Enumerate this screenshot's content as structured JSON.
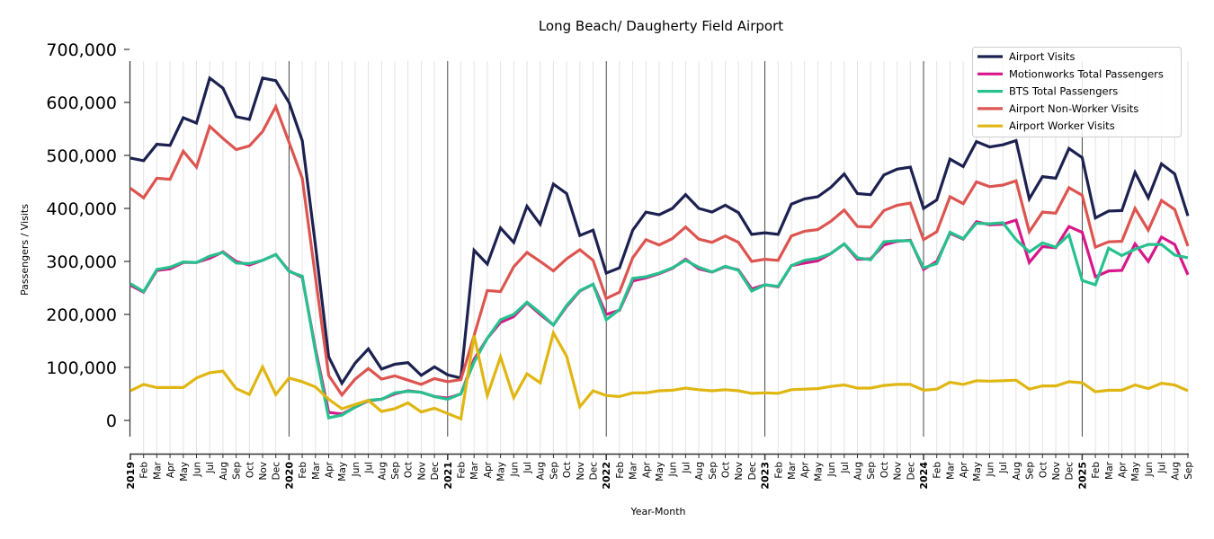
{
  "chart_data": {
    "type": "line",
    "title": "Long Beach/ Daugherty Field Airport",
    "xlabel": "Year-Month",
    "ylabel": "Passengers / Visits",
    "ylim": [
      -30000,
      700000
    ],
    "yticks": [
      0,
      100000,
      200000,
      300000,
      400000,
      500000,
      600000,
      700000
    ],
    "ytick_labels": [
      "0",
      "100,000",
      "200,000",
      "300,000",
      "400,000",
      "500,000",
      "600,000",
      "700,000"
    ],
    "grid": "vertical monthly gridlines; dark vertical lines at year starts",
    "legend_position": "top-right",
    "x_start": "2019-01",
    "x_end": "2025-09",
    "x_tick_labels": [
      "2019",
      "Feb",
      "Mar",
      "Apr",
      "May",
      "Jun",
      "Jul",
      "Aug",
      "Sep",
      "Oct",
      "Nov",
      "Dec",
      "2020",
      "Feb",
      "Mar",
      "Apr",
      "May",
      "Jun",
      "Jul",
      "Aug",
      "Sep",
      "Oct",
      "Nov",
      "Dec",
      "2021",
      "Feb",
      "Mar",
      "Apr",
      "May",
      "Jun",
      "Jul",
      "Aug",
      "Sep",
      "Oct",
      "Nov",
      "Dec",
      "2022",
      "Feb",
      "Mar",
      "Apr",
      "May",
      "Jun",
      "Jul",
      "Aug",
      "Sep",
      "Oct",
      "Nov",
      "Dec",
      "2023",
      "Feb",
      "Mar",
      "Apr",
      "May",
      "Jun",
      "Jul",
      "Aug",
      "Sep",
      "Oct",
      "Nov",
      "Dec",
      "2024",
      "Feb",
      "Mar",
      "Apr",
      "May",
      "Jun",
      "Jul",
      "Aug",
      "Sep",
      "Oct",
      "Nov",
      "Dec",
      "2025",
      "Feb",
      "Mar",
      "Apr",
      "May",
      "Jun",
      "Jul",
      "Aug",
      "Sep"
    ],
    "series": [
      {
        "name": "Airport Visits",
        "color": "#1c2150",
        "values": [
          495000,
          490000,
          521000,
          519000,
          571000,
          561000,
          646000,
          627000,
          573000,
          568000,
          646000,
          641000,
          600000,
          528000,
          330000,
          120000,
          70000,
          108000,
          135000,
          97000,
          106000,
          109000,
          85000,
          101000,
          86000,
          80000,
          321000,
          295000,
          363000,
          336000,
          404000,
          370000,
          446000,
          428000,
          349000,
          359000,
          278000,
          288000,
          359000,
          393000,
          388000,
          400000,
          426000,
          400000,
          393000,
          406000,
          392000,
          351000,
          354000,
          351000,
          408000,
          418000,
          422000,
          440000,
          465000,
          428000,
          426000,
          463000,
          474000,
          478000,
          400000,
          416000,
          493000,
          479000,
          526000,
          516000,
          520000,
          528000,
          418000,
          460000,
          457000,
          513000,
          496000,
          382000,
          395000,
          396000,
          468000,
          420000,
          484000,
          465000,
          386000
        ]
      },
      {
        "name": "Motionworks Total Passengers",
        "color": "#d6188a",
        "values": [
          255000,
          242000,
          283000,
          286000,
          298000,
          298000,
          306000,
          318000,
          300000,
          293000,
          302000,
          313000,
          282000,
          270000,
          135000,
          15000,
          12000,
          25000,
          37000,
          40000,
          50000,
          56000,
          53000,
          45000,
          42000,
          50000,
          115000,
          155000,
          185000,
          196000,
          222000,
          200000,
          180000,
          215000,
          244000,
          257000,
          200000,
          208000,
          263000,
          269000,
          277000,
          287000,
          304000,
          286000,
          280000,
          290000,
          284000,
          248000,
          256000,
          252000,
          292000,
          297000,
          301000,
          315000,
          333000,
          304000,
          305000,
          331000,
          338000,
          340000,
          285000,
          300000,
          353000,
          342000,
          375000,
          369000,
          370000,
          378000,
          298000,
          328000,
          326000,
          366000,
          355000,
          271000,
          282000,
          283000,
          333000,
          300000,
          346000,
          332000,
          275000
        ]
      },
      {
        "name": "BTS Total Passengers",
        "color": "#26c18e",
        "values": [
          258000,
          243000,
          285000,
          289000,
          299000,
          298000,
          310000,
          317000,
          297000,
          296000,
          302000,
          313000,
          281000,
          272000,
          130000,
          5000,
          10000,
          25000,
          38000,
          40000,
          52000,
          55000,
          53000,
          45000,
          40000,
          50000,
          110000,
          155000,
          190000,
          200000,
          223000,
          203000,
          180000,
          217000,
          245000,
          257000,
          190000,
          209000,
          268000,
          271000,
          278000,
          288000,
          302000,
          289000,
          280000,
          291000,
          283000,
          244000,
          256000,
          253000,
          292000,
          302000,
          306000,
          315000,
          333000,
          307000,
          303000,
          337000,
          339000,
          339000,
          288000,
          296000,
          355000,
          343000,
          372000,
          371000,
          373000,
          341000,
          318000,
          335000,
          327000,
          350000,
          264000,
          256000,
          325000,
          311000,
          323000,
          332000,
          332000,
          312000,
          307000
        ]
      },
      {
        "name": "Airport Non-Worker Visits",
        "color": "#dc5550",
        "values": [
          438000,
          420000,
          457000,
          455000,
          508000,
          478000,
          555000,
          532000,
          511000,
          518000,
          545000,
          592000,
          525000,
          457000,
          270000,
          85000,
          48000,
          78000,
          98000,
          78000,
          84000,
          76000,
          68000,
          79000,
          73000,
          77000,
          160000,
          245000,
          243000,
          290000,
          317000,
          300000,
          282000,
          305000,
          322000,
          302000,
          230000,
          242000,
          307000,
          341000,
          331000,
          343000,
          365000,
          342000,
          336000,
          348000,
          336000,
          300000,
          304000,
          302000,
          348000,
          357000,
          360000,
          376000,
          397000,
          366000,
          365000,
          396000,
          406000,
          410000,
          341000,
          356000,
          422000,
          409000,
          450000,
          441000,
          444000,
          452000,
          356000,
          393000,
          391000,
          439000,
          425000,
          327000,
          337000,
          338000,
          400000,
          359000,
          415000,
          398000,
          329000
        ]
      },
      {
        "name": "Airport Worker Visits",
        "color": "#e0b612",
        "values": [
          56000,
          68000,
          62000,
          62000,
          62000,
          80000,
          90000,
          93000,
          60000,
          49000,
          101000,
          49000,
          80000,
          73000,
          63000,
          40000,
          22000,
          30000,
          38000,
          17000,
          22000,
          33000,
          16000,
          23000,
          13000,
          3000,
          160000,
          47000,
          120000,
          43000,
          88000,
          71000,
          165000,
          121000,
          26000,
          56000,
          47000,
          45000,
          52000,
          52000,
          56000,
          57000,
          61000,
          58000,
          56000,
          58000,
          56000,
          51000,
          52000,
          51000,
          58000,
          59000,
          60000,
          64000,
          67000,
          61000,
          61000,
          66000,
          68000,
          68000,
          57000,
          59000,
          72000,
          68000,
          75000,
          74000,
          75000,
          76000,
          59000,
          65000,
          65000,
          73000,
          71000,
          54000,
          57000,
          57000,
          67000,
          60000,
          70000,
          67000,
          56000
        ]
      }
    ]
  }
}
